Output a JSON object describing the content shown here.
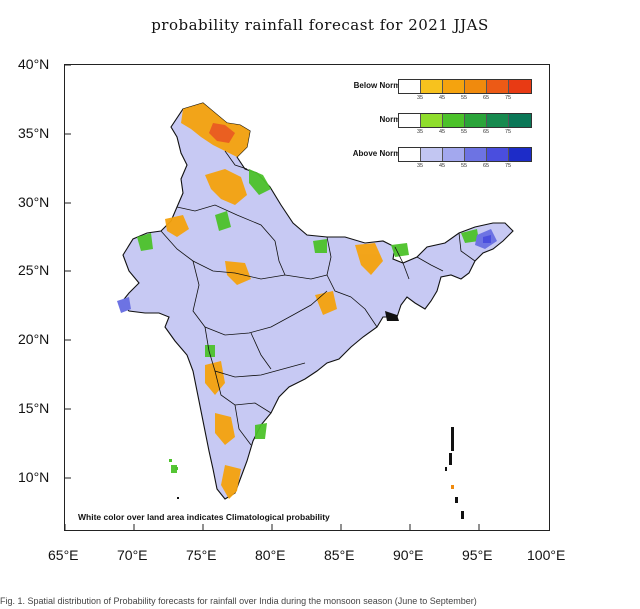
{
  "title": "probability rainfall forecast for 2021 JJAS",
  "footnote": "White color over land area indicates Climatological probability",
  "caption": "Fig. 1. Spatial distribution of Probability forecasts for rainfall over India during the monsoon season (June to September)",
  "axes": {
    "y_ticks": [
      "40°N",
      "35°N",
      "30°N",
      "25°N",
      "20°N",
      "15°N",
      "10°N"
    ],
    "x_ticks": [
      "65°E",
      "70°E",
      "75°E",
      "80°E",
      "85°E",
      "90°E",
      "95°E",
      "100°E"
    ]
  },
  "legend": {
    "rows": [
      {
        "label": "Below Normal",
        "colors": [
          "#ffffff",
          "#f7c21e",
          "#f5a30e",
          "#f08a0d",
          "#ec5a16",
          "#e83a14"
        ],
        "ticks": [
          "35",
          "45",
          "55",
          "65",
          "75"
        ]
      },
      {
        "label": "Normal",
        "colors": [
          "#ffffff",
          "#8fdd2c",
          "#4cc22a",
          "#2ba43a",
          "#178a4f",
          "#0b7757"
        ],
        "ticks": [
          "35",
          "45",
          "55",
          "65",
          "75"
        ]
      },
      {
        "label": "Above Normal",
        "colors": [
          "#ffffff",
          "#c2c6f2",
          "#a3a8ee",
          "#6d73e3",
          "#4a4ede",
          "#1d2cc8"
        ],
        "ticks": [
          "35",
          "45",
          "55",
          "65",
          "75"
        ]
      }
    ]
  },
  "map": {
    "land_color": "#ffffff",
    "border_color": "#111111",
    "dominant_category": "Above Normal"
  }
}
